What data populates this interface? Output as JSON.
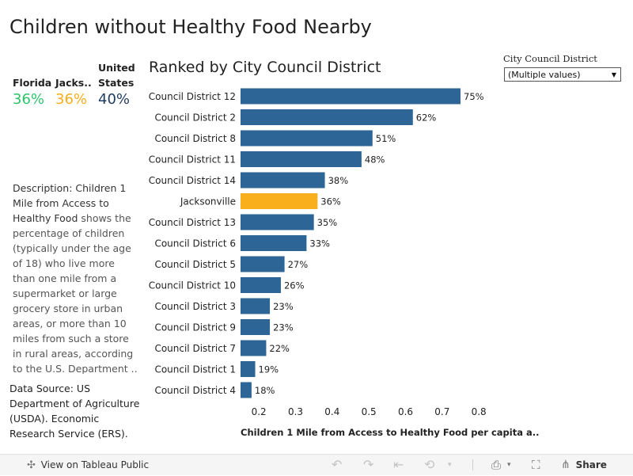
{
  "title": "Children without Healthy Food Nearby",
  "kpis": [
    {
      "label_lines": [
        "Florida"
      ],
      "value": "36%",
      "color": "#2bc46b"
    },
    {
      "label_lines": [
        "Jacks.."
      ],
      "value": "36%",
      "color": "#f9ae1c"
    },
    {
      "label_lines": [
        "United",
        "States"
      ],
      "value": "40%",
      "color": "#1e3a5f"
    }
  ],
  "description": {
    "lead": "Description:  Children 1 Mile from Access to Healthy Food",
    "rest": " shows the percentage of children (typically under the age of 18) who live more than one mile from a supermarket or large grocery store in urban areas, or more than 10 miles from such a store in rural areas, according to the U.S. Department .."
  },
  "source": "Data Source: US Department of Agriculture (USDA). Economic Research Service (ERS).",
  "filter": {
    "label": "City Council District",
    "value": "(Multiple values)"
  },
  "chart_data": {
    "type": "bar",
    "orientation": "horizontal",
    "title": "Ranked by City Council District",
    "categories": [
      "Council District 12",
      "Council District 2",
      "Council District 8",
      "Council District 11",
      "Council District 14",
      "Jacksonville",
      "Council District 13",
      "Council District 6",
      "Council District 5",
      "Council District 10",
      "Council District 3",
      "Council District 9",
      "Council District 7",
      "Council District 1",
      "Council District 4"
    ],
    "values": [
      0.75,
      0.62,
      0.51,
      0.48,
      0.38,
      0.36,
      0.35,
      0.33,
      0.27,
      0.26,
      0.23,
      0.23,
      0.22,
      0.19,
      0.18
    ],
    "value_labels": [
      "75%",
      "62%",
      "51%",
      "48%",
      "38%",
      "36%",
      "35%",
      "33%",
      "27%",
      "26%",
      "23%",
      "23%",
      "22%",
      "19%",
      "18%"
    ],
    "highlight": "Jacksonville",
    "bar_color": "#2e6597",
    "highlight_color": "#f9ae1c",
    "xlim": [
      0.15,
      0.8
    ],
    "x_ticks": [
      0.2,
      0.3,
      0.4,
      0.5,
      0.6,
      0.7,
      0.8
    ],
    "x_tick_labels": [
      "0.2",
      "0.3",
      "0.4",
      "0.5",
      "0.6",
      "0.7",
      "0.8"
    ],
    "xlabel": "Children 1 Mile from Access to Healthy Food per capita a..",
    "ylabel": "",
    "grid": false
  },
  "toolbar": {
    "view_label": "View on Tableau Public",
    "share_label": "Share"
  }
}
